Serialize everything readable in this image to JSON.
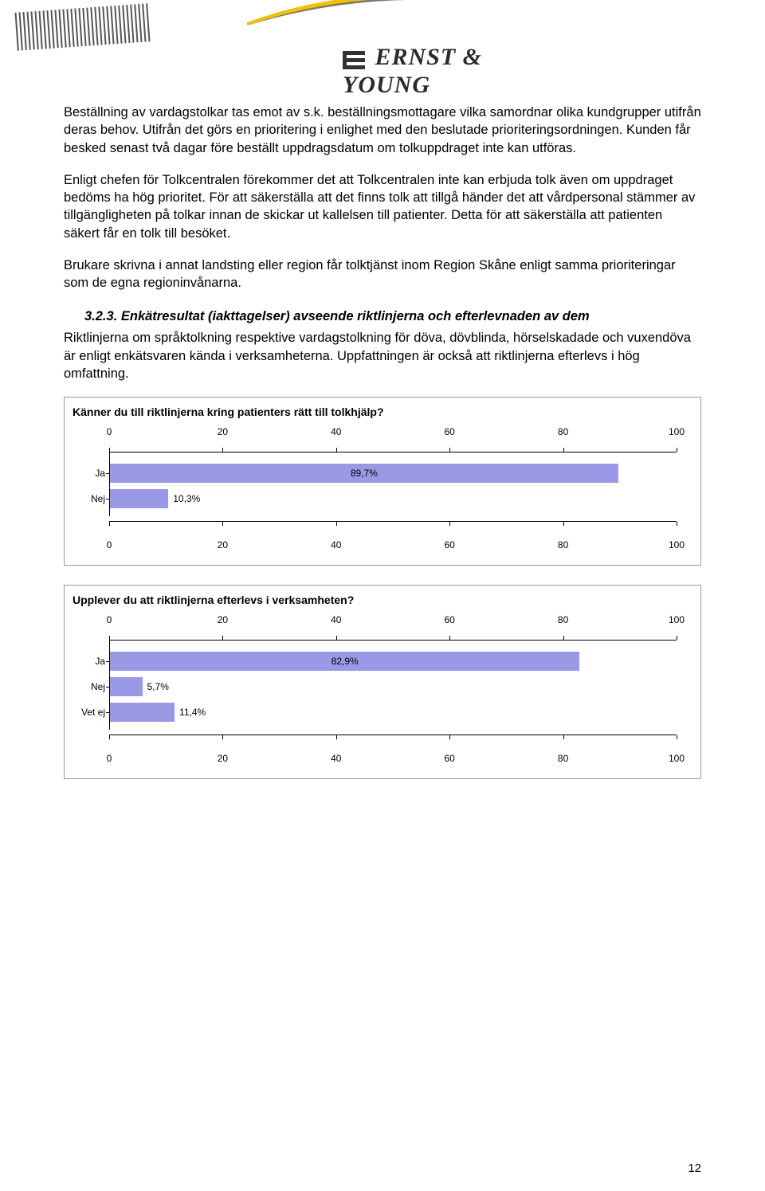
{
  "logo_text": "ERNST & YOUNG",
  "paragraphs": [
    "Beställning av vardagstolkar tas emot av s.k. beställningsmottagare vilka samordnar olika kundgrupper utifrån deras behov. Utifrån det görs en prioritering i enlighet med den beslutade prioriteringsordningen. Kunden får besked senast två dagar före beställt uppdragsdatum om tolkuppdraget inte kan utföras.",
    "Enligt chefen för Tolkcentralen förekommer det att Tolkcentralen inte kan erbjuda tolk även om uppdraget bedöms ha hög prioritet. För att säkerställa att det finns tolk att tillgå händer det att vårdpersonal stämmer av tillgängligheten på tolkar innan de skickar ut kallelsen till patienter. Detta för att säkerställa att patienten säkert får en tolk till besöket.",
    "Brukare skrivna i annat landsting eller region får tolktjänst inom Region Skåne enligt samma prioriteringar som de egna regioninvånarna."
  ],
  "section_heading": "3.2.3. Enkätresultat (iakttagelser) avseende riktlinjerna och efterlevnaden av dem",
  "paragraph_after_heading": "Riktlinjerna om språktolkning respektive vardagstolkning för döva, dövblinda, hörselskadade och vuxendöva är enligt enkätsvaren kända i verksamheterna. Uppfattningen är också att riktlinjerna efterlevs i hög omfattning.",
  "charts": [
    {
      "type": "bar",
      "title": "Känner du till riktlinjerna kring patienters rätt till tolkhjälp?",
      "xlim": [
        0,
        100
      ],
      "xticks": [
        0,
        20,
        40,
        60,
        80,
        100
      ],
      "bar_color": "#9999e6",
      "categories": [
        "Ja",
        "Nej"
      ],
      "values": [
        89.7,
        10.3
      ],
      "value_labels": [
        "89,7%",
        "10,3%"
      ],
      "label_inside_threshold": 20
    },
    {
      "type": "bar",
      "title": "Upplever du att riktlinjerna efterlevs i verksamheten?",
      "xlim": [
        0,
        100
      ],
      "xticks": [
        0,
        20,
        40,
        60,
        80,
        100
      ],
      "bar_color": "#9999e6",
      "categories": [
        "Ja",
        "Nej",
        "Vet ej"
      ],
      "values": [
        82.9,
        5.7,
        11.4
      ],
      "value_labels": [
        "82,9%",
        "5,7%",
        "11,4%"
      ],
      "label_inside_threshold": 20
    }
  ],
  "page_number": "12"
}
